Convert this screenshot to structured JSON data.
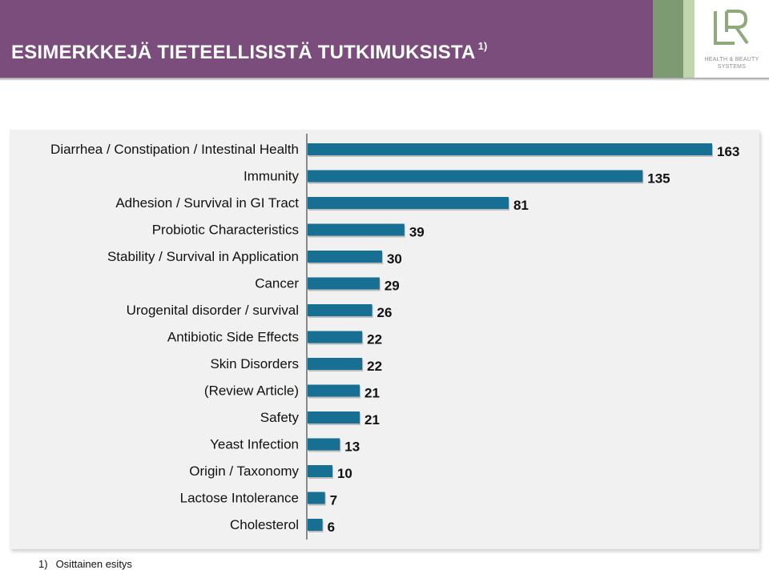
{
  "header": {
    "title": "ESIMERKKEJÄ TIETEELLISISTÄ TUTKIMUKSISTA",
    "title_sup": "1)",
    "accent_color": "#7b4d7c"
  },
  "logo": {
    "mark": "LR",
    "line1": "HEALTH & BEAUTY",
    "line2": "SYSTEMS",
    "icon": "lr-logo-icon"
  },
  "footnote": {
    "number": "1)",
    "text": "Osittainen esitys"
  },
  "chart_data": {
    "type": "bar",
    "orientation": "horizontal",
    "title": "",
    "xlabel": "",
    "ylabel": "",
    "bar_color": "#176f93",
    "grid": false,
    "xlim": [
      0,
      163
    ],
    "categories": [
      "Diarrhea / Constipation / Intestinal Health",
      "Immunity",
      "Adhesion / Survival in GI Tract",
      "Probiotic Characteristics",
      "Stability / Survival in Application",
      "Cancer",
      "Urogenital disorder / survival",
      "Antibiotic Side Effects",
      "Skin Disorders",
      "(Review Article)",
      "Safety",
      "Yeast Infection",
      "Origin / Taxonomy",
      "Lactose Intolerance",
      "Cholesterol"
    ],
    "values": [
      163,
      135,
      81,
      39,
      30,
      29,
      26,
      22,
      22,
      21,
      21,
      13,
      10,
      7,
      6
    ]
  }
}
